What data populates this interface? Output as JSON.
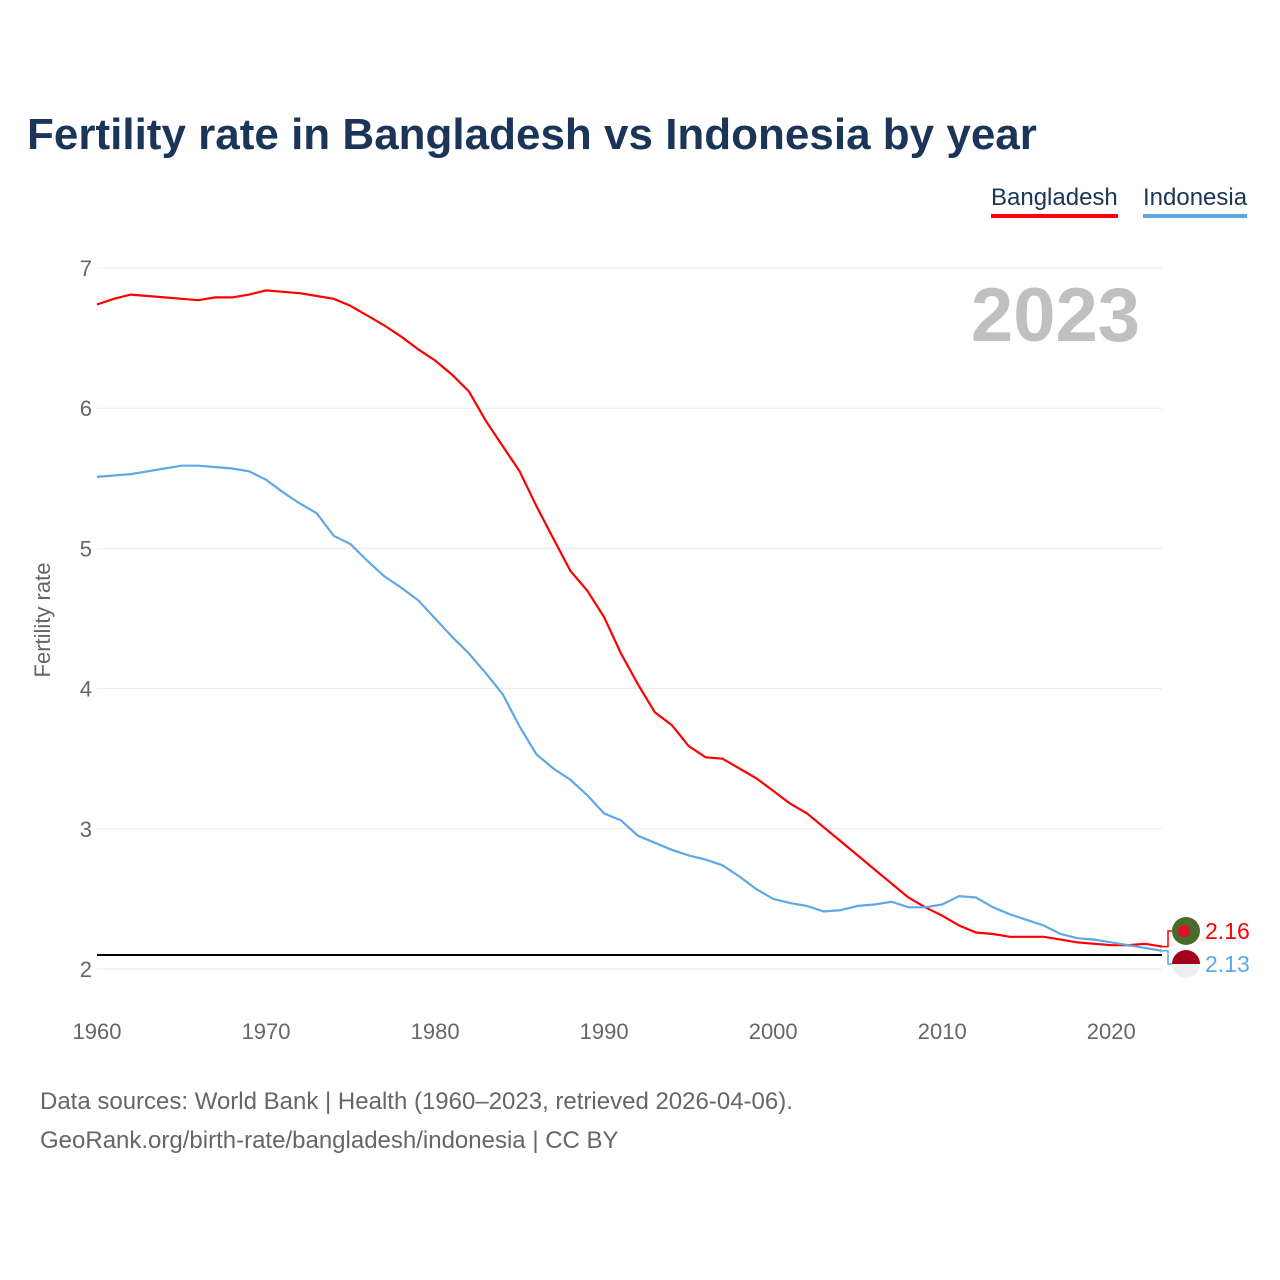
{
  "title": "Fertility rate in Bangladesh vs Indonesia by year",
  "year_label": "2023",
  "sources": [
    "Data sources: World Bank | Health (1960–2023, retrieved 2026-04-06).",
    "GeoRank.org/birth-rate/bangladesh/indonesia | CC BY"
  ],
  "chart_data": {
    "type": "line",
    "title": "Fertility rate in Bangladesh vs Indonesia by year",
    "xlabel": "",
    "ylabel": "Fertility rate",
    "xlim": [
      1960,
      2023
    ],
    "ylim": [
      2,
      7
    ],
    "xticks": [
      1960,
      1970,
      1980,
      1990,
      2000,
      2010,
      2020
    ],
    "yticks": [
      2,
      3,
      4,
      5,
      6,
      7
    ],
    "grid": true,
    "legend": "top-right",
    "reference_line": 2.1,
    "x_start": 1960,
    "series": [
      {
        "name": "Bangladesh",
        "color": "#ff0000",
        "end_label": "2.16",
        "values": [
          6.74,
          6.78,
          6.81,
          6.8,
          6.79,
          6.78,
          6.77,
          6.79,
          6.79,
          6.81,
          6.84,
          6.83,
          6.82,
          6.8,
          6.78,
          6.73,
          6.66,
          6.59,
          6.51,
          6.42,
          6.34,
          6.24,
          6.12,
          5.91,
          5.73,
          5.55,
          5.3,
          5.07,
          4.84,
          4.7,
          4.51,
          4.25,
          4.03,
          3.83,
          3.74,
          3.59,
          3.51,
          3.5,
          3.43,
          3.36,
          3.27,
          3.18,
          3.11,
          3.01,
          2.91,
          2.81,
          2.71,
          2.61,
          2.51,
          2.44,
          2.38,
          2.31,
          2.26,
          2.25,
          2.23,
          2.23,
          2.23,
          2.21,
          2.19,
          2.18,
          2.17,
          2.17,
          2.18,
          2.16
        ]
      },
      {
        "name": "Indonesia",
        "color": "#5ea8ea",
        "end_label": "2.13",
        "values": [
          5.51,
          5.52,
          5.53,
          5.55,
          5.57,
          5.59,
          5.59,
          5.58,
          5.57,
          5.55,
          5.49,
          5.4,
          5.32,
          5.25,
          5.09,
          5.03,
          4.91,
          4.8,
          4.72,
          4.63,
          4.5,
          4.37,
          4.25,
          4.11,
          3.96,
          3.73,
          3.53,
          3.43,
          3.35,
          3.24,
          3.11,
          3.06,
          2.95,
          2.9,
          2.85,
          2.81,
          2.78,
          2.74,
          2.66,
          2.57,
          2.5,
          2.47,
          2.45,
          2.41,
          2.42,
          2.45,
          2.46,
          2.48,
          2.44,
          2.44,
          2.46,
          2.52,
          2.51,
          2.44,
          2.39,
          2.35,
          2.31,
          2.25,
          2.22,
          2.21,
          2.19,
          2.17,
          2.15,
          2.13
        ]
      }
    ]
  }
}
